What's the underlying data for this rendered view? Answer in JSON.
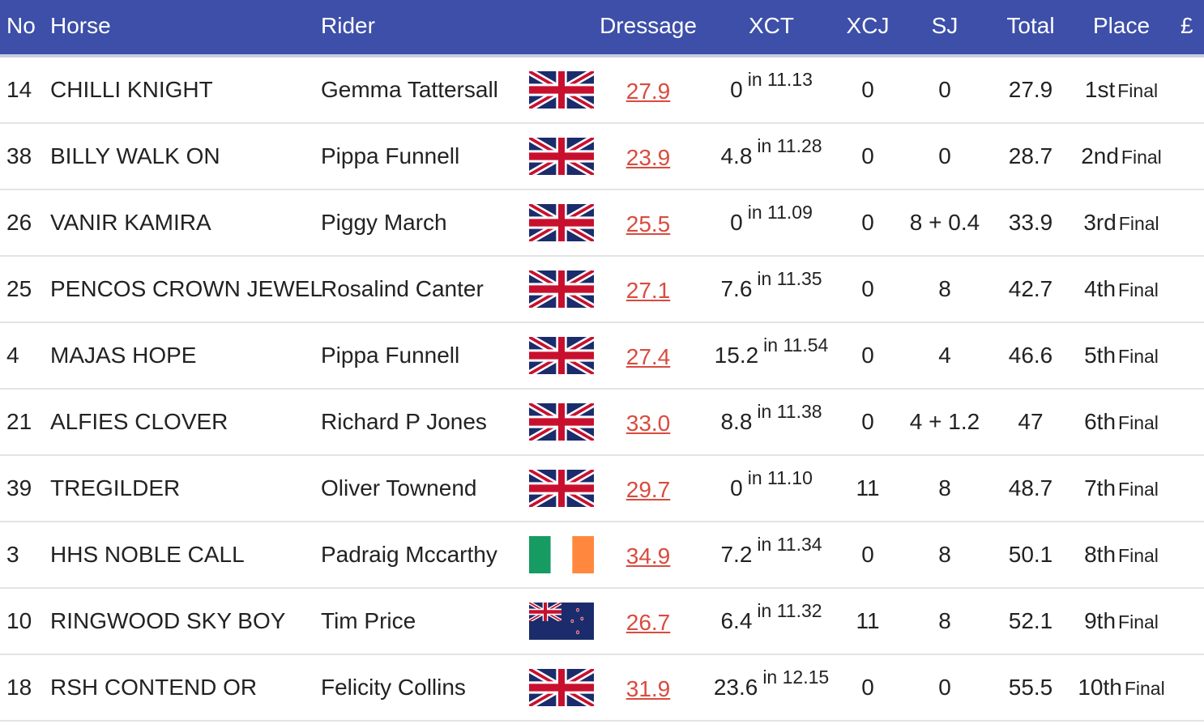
{
  "header": {
    "no": "No",
    "horse": "Horse",
    "rider": "Rider",
    "dressage": "Dressage",
    "xct": "XCT",
    "xcj": "XCJ",
    "sj": "SJ",
    "total": "Total",
    "place": "Place",
    "prize": "£"
  },
  "colors": {
    "header_bg": "#3d4fa8",
    "dressage_link": "#d94b3e",
    "row_divider": "#e3e3e3"
  },
  "rows": [
    {
      "no": "14",
      "horse": "CHILLI KNIGHT",
      "rider": "Gemma Tattersall",
      "flag": "gb-flag-icon",
      "dressage": "27.9",
      "xct": "0",
      "xct_time": "in 11.13",
      "xcj": "0",
      "sj": "0",
      "total": "27.9",
      "place": "1st",
      "place_note": "Final"
    },
    {
      "no": "38",
      "horse": "BILLY WALK ON",
      "rider": "Pippa Funnell",
      "flag": "gb-flag-icon",
      "dressage": "23.9",
      "xct": "4.8",
      "xct_time": "in 11.28",
      "xcj": "0",
      "sj": "0",
      "total": "28.7",
      "place": "2nd",
      "place_note": "Final"
    },
    {
      "no": "26",
      "horse": "VANIR KAMIRA",
      "rider": "Piggy March",
      "flag": "gb-flag-icon",
      "dressage": "25.5",
      "xct": "0",
      "xct_time": "in 11.09",
      "xcj": "0",
      "sj": "8 + 0.4",
      "total": "33.9",
      "place": "3rd",
      "place_note": "Final"
    },
    {
      "no": "25",
      "horse": "PENCOS CROWN JEWEL",
      "rider": "Rosalind Canter",
      "flag": "gb-flag-icon",
      "dressage": "27.1",
      "xct": "7.6",
      "xct_time": "in 11.35",
      "xcj": "0",
      "sj": "8",
      "total": "42.7",
      "place": "4th",
      "place_note": "Final"
    },
    {
      "no": "4",
      "horse": "MAJAS HOPE",
      "rider": "Pippa Funnell",
      "flag": "gb-flag-icon",
      "dressage": "27.4",
      "xct": "15.2",
      "xct_time": "in 11.54",
      "xcj": "0",
      "sj": "4",
      "total": "46.6",
      "place": "5th",
      "place_note": "Final"
    },
    {
      "no": "21",
      "horse": "ALFIES CLOVER",
      "rider": "Richard P Jones",
      "flag": "gb-flag-icon",
      "dressage": "33.0",
      "xct": "8.8",
      "xct_time": "in 11.38",
      "xcj": "0",
      "sj": "4 + 1.2",
      "total": "47",
      "place": "6th",
      "place_note": "Final"
    },
    {
      "no": "39",
      "horse": "TREGILDER",
      "rider": "Oliver Townend",
      "flag": "gb-flag-icon",
      "dressage": "29.7",
      "xct": "0",
      "xct_time": "in 11.10",
      "xcj": "11",
      "sj": "8",
      "total": "48.7",
      "place": "7th",
      "place_note": "Final"
    },
    {
      "no": "3",
      "horse": "HHS NOBLE CALL",
      "rider": "Padraig Mccarthy",
      "flag": "ie-flag-icon",
      "dressage": "34.9",
      "xct": "7.2",
      "xct_time": "in 11.34",
      "xcj": "0",
      "sj": "8",
      "total": "50.1",
      "place": "8th",
      "place_note": "Final"
    },
    {
      "no": "10",
      "horse": "RINGWOOD SKY BOY",
      "rider": "Tim Price",
      "flag": "nz-flag-icon",
      "dressage": "26.7",
      "xct": "6.4",
      "xct_time": "in 11.32",
      "xcj": "11",
      "sj": "8",
      "total": "52.1",
      "place": "9th",
      "place_note": "Final"
    },
    {
      "no": "18",
      "horse": "RSH CONTEND OR",
      "rider": "Felicity Collins",
      "flag": "gb-flag-icon",
      "dressage": "31.9",
      "xct": "23.6",
      "xct_time": "in 12.15",
      "xcj": "0",
      "sj": "0",
      "total": "55.5",
      "place": "10th",
      "place_note": "Final"
    }
  ]
}
